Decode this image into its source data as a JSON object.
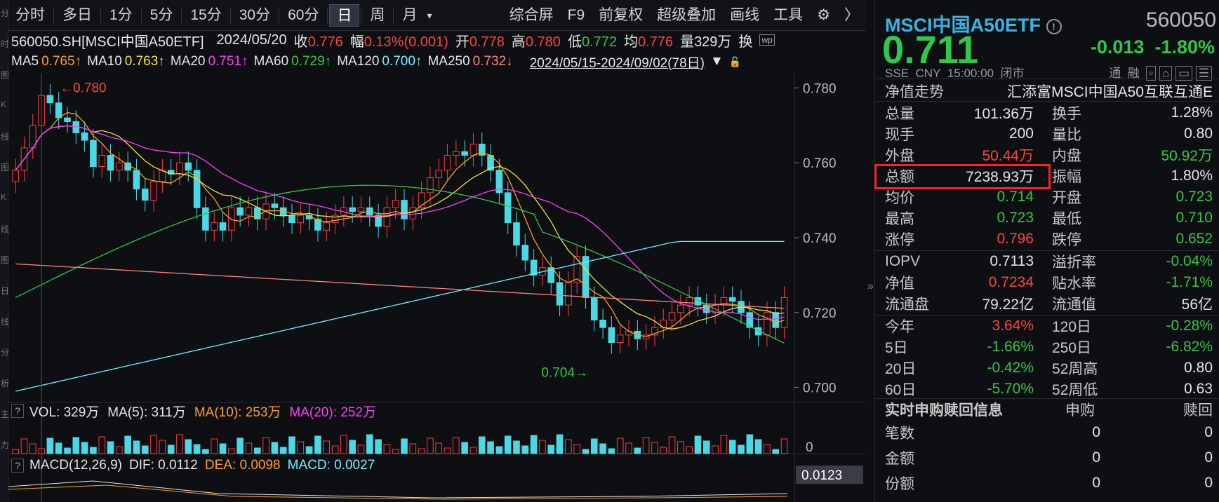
{
  "toolbar": {
    "periods": [
      "分时",
      "多日",
      "1分",
      "5分",
      "15分",
      "30分",
      "60分",
      "日",
      "周",
      "月"
    ],
    "selected": "日",
    "dropdown_icon": "▾",
    "right_items": [
      "综合屏",
      "F9",
      "前复权",
      "超级叠加",
      "画线",
      "工具"
    ],
    "gear_icon": "⚙",
    "next_icon": "〉"
  },
  "left_strip": {
    "chars": [
      "分",
      "时",
      "图",
      "K",
      "线",
      "图",
      "K",
      "线",
      "图",
      "日",
      "线",
      "分",
      "析",
      "主",
      "力"
    ]
  },
  "info": {
    "symbol": "560050.SH[MSCI中国A50ETF]",
    "date": "2024/05/20",
    "close_label": "收",
    "close": "0.776",
    "range_label": "幅",
    "range": "0.13%(0.001)",
    "open_label": "开",
    "open": "0.778",
    "high_label": "高",
    "high": "0.780",
    "low_label": "低",
    "low": "0.772",
    "avg_label": "均",
    "avg": "0.776",
    "vol_label": "量",
    "vol": "329万",
    "swap_label": "换",
    "wp_icon": "wp"
  },
  "ma": {
    "ma5": "MA5",
    "ma5_val": "0.765↑",
    "ma10": "MA10",
    "ma10_val": "0.763↑",
    "ma20": "MA20",
    "ma20_val": "0.751↑",
    "ma60": "MA60",
    "ma60_val": "0.729↑",
    "ma120": "MA120",
    "ma120_val": "0.700↑",
    "ma250": "MA250",
    "ma250_val": "0.732↓",
    "range": "2024/05/15-2024/09/02(78日)"
  },
  "chart_data": {
    "type": "candlestick",
    "y_ticks": [
      "0.780",
      "0.760",
      "0.740",
      "0.720",
      "0.700"
    ],
    "ylim": [
      0.696,
      0.784
    ],
    "high_mark": "0.780",
    "low_mark": "0.704"
  },
  "volume": {
    "label": "VOL: 329万",
    "ma5": "MA(5): 311万",
    "ma10": "MA(10): 253万",
    "ma20": "MA(20): 252万",
    "zero": "0"
  },
  "macd": {
    "label": "MACD(12,26,9)",
    "dif": "DIF: 0.0112",
    "dea": "DEA: 0.0098",
    "macd": "MACD: 0.0027",
    "axis": "0.0123"
  },
  "quote": {
    "name": "MSCI中国A50ETF",
    "code": "560050",
    "price": "0.711",
    "change": "-0.013",
    "pct": "-1.80%",
    "exchange": "SSE",
    "currency": "CNY",
    "time": "15:00:00",
    "status": "闭市",
    "tong": "通",
    "rong": "融",
    "nav_trend": "净值走势",
    "fund_name": "汇添富MSCI中国A50互联互通E"
  },
  "rows": [
    {
      "l1": "总量",
      "v1": "101.36万",
      "c1": "wht",
      "l2": "换手",
      "v2": "1.28%",
      "c2": "wht"
    },
    {
      "l1": "现手",
      "v1": "200",
      "c1": "wht",
      "l2": "量比",
      "v2": "0.80",
      "c2": "wht"
    },
    {
      "l1": "外盘",
      "v1": "50.44万",
      "c1": "red",
      "l2": "内盘",
      "v2": "50.92万",
      "c2": "green"
    },
    {
      "l1": "总额",
      "v1": "7238.93万",
      "c1": "wht",
      "l2": "振幅",
      "v2": "1.80%",
      "c2": "wht"
    },
    {
      "l1": "均价",
      "v1": "0.714",
      "c1": "green",
      "l2": "开盘",
      "v2": "0.723",
      "c2": "green"
    },
    {
      "l1": "最高",
      "v1": "0.723",
      "c1": "green",
      "l2": "最低",
      "v2": "0.710",
      "c2": "green"
    },
    {
      "l1": "涨停",
      "v1": "0.796",
      "c1": "red",
      "l2": "跌停",
      "v2": "0.652",
      "c2": "green"
    },
    {
      "l1": "IOPV",
      "v1": "0.7113",
      "c1": "wht",
      "l2": "溢折率",
      "v2": "-0.04%",
      "c2": "green"
    },
    {
      "l1": "净值",
      "v1": "0.7234",
      "c1": "red",
      "l2": "贴水率",
      "v2": "-1.71%",
      "c2": "green"
    },
    {
      "l1": "流通盘",
      "v1": "79.22亿",
      "c1": "wht",
      "l2": "流通值",
      "v2": "56亿",
      "c2": "wht"
    },
    {
      "l1": "今年",
      "v1": "3.64%",
      "c1": "red",
      "l2": "120日",
      "v2": "-0.28%",
      "c2": "green"
    },
    {
      "l1": "5日",
      "v1": "-1.66%",
      "c1": "green",
      "l2": "250日",
      "v2": "-6.82%",
      "c2": "green"
    },
    {
      "l1": "20日",
      "v1": "-0.42%",
      "c1": "green",
      "l2": "52周高",
      "v2": "0.80",
      "c2": "wht"
    },
    {
      "l1": "60日",
      "v1": "-5.70%",
      "c1": "green",
      "l2": "52周低",
      "v2": "0.63",
      "c2": "wht"
    }
  ],
  "subscribe": {
    "title": "实时申购赎回信息",
    "col1": "申购",
    "col2": "赎回",
    "rows": [
      {
        "label": "笔数",
        "v1": "0",
        "v2": "0"
      },
      {
        "label": "金额",
        "v1": "0",
        "v2": "0"
      },
      {
        "label": "份额",
        "v1": "0",
        "v2": "0"
      }
    ]
  }
}
